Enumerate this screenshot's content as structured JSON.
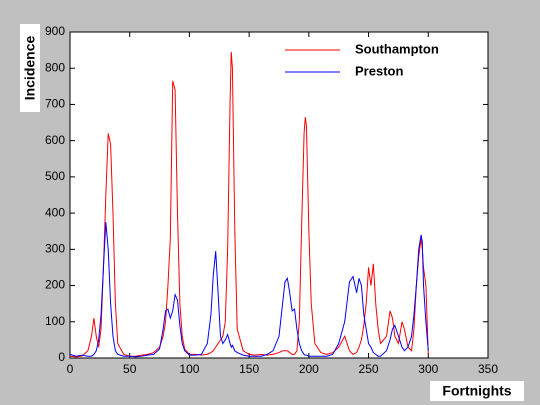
{
  "chart_data": {
    "type": "line",
    "x_label": "Fortnights",
    "y_label": "Incidence",
    "x": [
      0,
      5,
      10,
      15,
      18,
      20,
      22,
      24,
      26,
      28,
      30,
      32,
      34,
      36,
      38,
      40,
      45,
      50,
      55,
      60,
      65,
      70,
      75,
      78,
      80,
      82,
      84,
      86,
      88,
      90,
      92,
      94,
      96,
      100,
      105,
      110,
      115,
      118,
      120,
      122,
      124,
      126,
      128,
      130,
      132,
      134,
      135,
      136,
      138,
      140,
      145,
      150,
      155,
      160,
      165,
      170,
      175,
      178,
      180,
      182,
      184,
      186,
      188,
      190,
      192,
      194,
      196,
      197,
      198,
      200,
      202,
      205,
      210,
      215,
      220,
      225,
      230,
      234,
      237,
      240,
      242,
      244,
      246,
      248,
      250,
      252,
      254,
      256,
      258,
      260,
      265,
      268,
      270,
      272,
      275,
      278,
      280,
      283,
      286,
      288,
      290,
      292,
      294,
      295,
      296,
      298,
      300
    ],
    "series": [
      {
        "name": "Southampton",
        "color": "#ff0000",
        "values": [
          5,
          3,
          5,
          20,
          60,
          110,
          60,
          30,
          80,
          250,
          450,
          620,
          590,
          400,
          150,
          40,
          10,
          5,
          5,
          8,
          10,
          15,
          30,
          60,
          100,
          200,
          330,
          765,
          740,
          400,
          150,
          60,
          25,
          10,
          10,
          8,
          10,
          15,
          20,
          30,
          40,
          50,
          60,
          100,
          300,
          700,
          845,
          800,
          350,
          80,
          20,
          10,
          8,
          10,
          8,
          10,
          15,
          20,
          20,
          20,
          15,
          10,
          10,
          20,
          100,
          370,
          620,
          665,
          640,
          350,
          150,
          40,
          15,
          10,
          15,
          30,
          60,
          20,
          10,
          15,
          30,
          50,
          90,
          150,
          250,
          200,
          260,
          150,
          80,
          40,
          60,
          130,
          110,
          60,
          40,
          100,
          80,
          30,
          20,
          80,
          200,
          280,
          330,
          300,
          250,
          200,
          10
        ]
      },
      {
        "name": "Preston",
        "color": "#0000ff",
        "values": [
          10,
          5,
          8,
          5,
          5,
          10,
          20,
          50,
          120,
          250,
          375,
          300,
          150,
          60,
          20,
          10,
          5,
          5,
          3,
          5,
          8,
          10,
          25,
          80,
          130,
          135,
          110,
          130,
          175,
          160,
          90,
          40,
          20,
          8,
          8,
          10,
          40,
          120,
          230,
          295,
          180,
          60,
          40,
          50,
          65,
          40,
          30,
          35,
          20,
          15,
          8,
          5,
          5,
          5,
          10,
          20,
          60,
          150,
          210,
          220,
          180,
          130,
          135,
          80,
          40,
          20,
          10,
          8,
          8,
          5,
          5,
          5,
          5,
          5,
          10,
          40,
          100,
          210,
          225,
          180,
          220,
          200,
          120,
          80,
          40,
          30,
          15,
          10,
          5,
          5,
          20,
          50,
          80,
          90,
          60,
          30,
          20,
          30,
          60,
          120,
          200,
          300,
          340,
          320,
          200,
          100,
          20
        ]
      }
    ],
    "xlim": [
      0,
      350
    ],
    "xticks": [
      0,
      50,
      100,
      150,
      200,
      250,
      300,
      350
    ],
    "ylim": [
      0,
      900
    ],
    "yticks": [
      0,
      100,
      200,
      300,
      400,
      500,
      600,
      700,
      800,
      900
    ],
    "legend": "top-right"
  }
}
